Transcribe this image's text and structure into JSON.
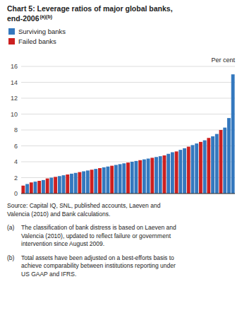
{
  "chart_data": {
    "type": "bar",
    "title": "Chart 5: Leverage ratios of major global banks,\nend-2006",
    "ylabel": "Per cent",
    "annotations": [
      "(a)(b)",
      "Source: Capital IQ, SNL, published accounts, Laeven and\nValencia (2010) and Bank calculations.",
      "(a)",
      "The classification of bank distress is based on Laeven and\nValencia (2010), updated to reflect failure or government\nintervention since August 2009.",
      "(b)",
      "Total assets have been adjusted on a best-efforts basis to\nachieve comparability between institutions reporting under\nUS GAAP and IFRS."
    ],
    "categories": [
      null,
      null,
      null,
      null,
      null,
      null,
      null,
      null,
      null,
      null,
      null,
      null,
      null,
      null,
      null,
      null,
      null,
      null,
      null,
      null,
      null,
      null,
      null,
      null,
      null,
      null,
      null,
      null,
      null,
      null,
      null,
      null,
      null,
      null,
      null,
      null,
      null,
      null,
      null,
      null,
      null,
      null,
      null,
      null,
      null,
      null,
      null,
      null,
      null,
      null,
      null,
      null,
      null
    ],
    "series": [
      {
        "name": "Surviving banks",
        "color": "#3478be",
        "values": [
          null,
          1.2,
          null,
          1.5,
          null,
          1.7,
          null,
          2.0,
          null,
          2.2,
          2.3,
          null,
          2.5,
          2.6,
          null,
          2.8,
          2.9,
          null,
          3.1,
          null,
          3.3,
          3.4,
          null,
          3.6,
          3.7,
          3.8,
          null,
          4.0,
          4.1,
          null,
          4.3,
          4.4,
          null,
          4.6,
          4.7,
          null,
          5.0,
          5.2,
          null,
          5.5,
          5.7,
          null,
          6.1,
          6.3,
          null,
          6.7,
          null,
          7.2,
          7.5,
          null,
          8.3,
          9.5,
          15.0
        ]
      },
      {
        "name": "Failed banks",
        "color": "#cc2020",
        "values": [
          1.0,
          null,
          1.4,
          null,
          1.6,
          null,
          1.9,
          null,
          2.1,
          null,
          null,
          2.4,
          null,
          null,
          2.7,
          null,
          null,
          3.0,
          null,
          3.2,
          null,
          null,
          3.5,
          null,
          null,
          null,
          3.9,
          null,
          null,
          4.2,
          null,
          null,
          4.5,
          null,
          null,
          4.8,
          null,
          null,
          5.3,
          null,
          null,
          5.9,
          null,
          null,
          6.5,
          null,
          7.0,
          null,
          null,
          8.0,
          null,
          null,
          null
        ]
      }
    ],
    "ylim": [
      0,
      16
    ],
    "yticks": [
      0,
      2,
      4,
      6,
      8,
      10,
      12,
      14,
      16
    ],
    "grid": true,
    "legend": "upper left",
    "tick_labels": "y"
  }
}
